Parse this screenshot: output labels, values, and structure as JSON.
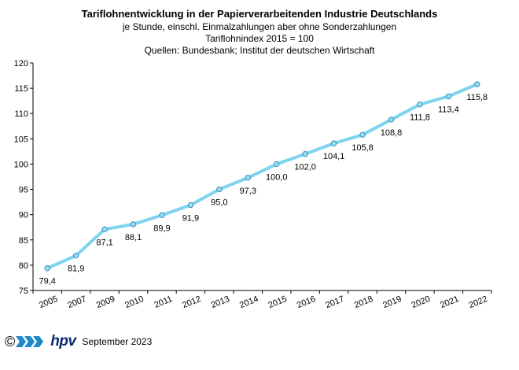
{
  "chart_data": {
    "type": "line",
    "title": "Tariflohnentwicklung in der Papierverarbeitenden Industrie Deutschlands",
    "subtitle": [
      "je Stunde, einschl. Einmalzahlungen  aber ohne Sonderzahlungen",
      "Tariflohnindex  2015  = 100",
      "Quellen: Bundesbank; Institut der deutschen Wirtschaft"
    ],
    "categories": [
      "2005",
      "2007",
      "2009",
      "2010",
      "2011",
      "2012",
      "2013",
      "2014",
      "2015",
      "2016",
      "2017",
      "2018",
      "2019",
      "2020",
      "2021",
      "2022"
    ],
    "values": [
      79.4,
      81.9,
      87.1,
      88.1,
      89.9,
      91.9,
      95.0,
      97.3,
      100.0,
      102.0,
      104.1,
      105.8,
      108.8,
      111.8,
      113.4,
      115.8
    ],
    "value_labels": [
      "79,4",
      "81,9",
      "87,1",
      "88,1",
      "89,9",
      "91,9",
      "95,0",
      "97,3",
      "100,0",
      "102,0",
      "104,1",
      "105,8",
      "108,8",
      "111,8",
      "113,4",
      "115,8"
    ],
    "yticks": [
      75,
      80,
      85,
      90,
      95,
      100,
      105,
      110,
      115,
      120
    ],
    "ylim": [
      75,
      120
    ],
    "xlabel": "",
    "ylabel": "",
    "grid": false,
    "line_color": "#7fd3ef",
    "marker_fill": "#99dcf2",
    "marker_edge": "#3a8fbf"
  },
  "footer": {
    "copyright_symbol": "©",
    "logo_text": "hpv",
    "date": "September 2023",
    "logo_color": "#0b2a6e"
  }
}
